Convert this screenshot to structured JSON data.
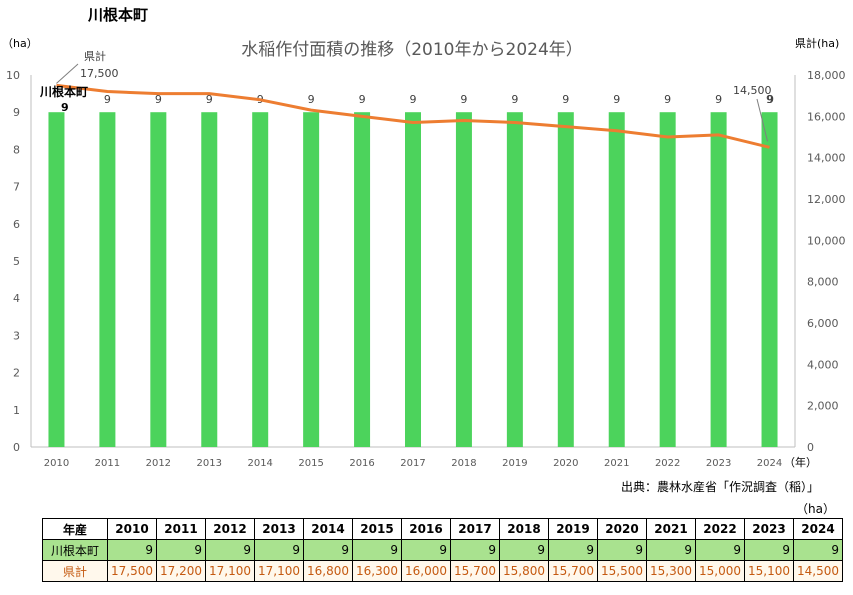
{
  "page_title": "川根本町",
  "source_note": "出典：農林水産省「作況調査（稲）」",
  "table_unit": "（ha）",
  "table": {
    "header_label": "年産",
    "town_label": "川根本町",
    "pref_label": "県計"
  },
  "colors": {
    "bar": "#4cd35c",
    "line": "#ed7d31",
    "pref_text": "#c55a11",
    "town_row_bg": "#a9e28f"
  },
  "chart_data": {
    "type": "bar",
    "title": "水稲作付面積の推移（2010年から2024年）",
    "y_left_unit": "（ha）",
    "y_right_unit": "県計(ha)",
    "x_unit": "（年）",
    "categories": [
      "2010",
      "2011",
      "2012",
      "2013",
      "2014",
      "2015",
      "2016",
      "2017",
      "2018",
      "2019",
      "2020",
      "2021",
      "2022",
      "2023",
      "2024"
    ],
    "y_left_ticks": [
      "0",
      "1",
      "2",
      "3",
      "4",
      "5",
      "6",
      "7",
      "8",
      "9",
      "10"
    ],
    "y_right_ticks": [
      "0",
      "2,000",
      "4,000",
      "6,000",
      "8,000",
      "10,000",
      "12,000",
      "14,000",
      "16,000",
      "18,000"
    ],
    "ylim_left": [
      0,
      10
    ],
    "ylim_right": [
      0,
      18000
    ],
    "series": [
      {
        "name": "川根本町",
        "kind": "bar",
        "axis": "left",
        "values": [
          9,
          9,
          9,
          9,
          9,
          9,
          9,
          9,
          9,
          9,
          9,
          9,
          9,
          9,
          9
        ],
        "labels": [
          "9",
          "9",
          "9",
          "9",
          "9",
          "9",
          "9",
          "9",
          "9",
          "9",
          "9",
          "9",
          "9",
          "9",
          "9"
        ]
      },
      {
        "name": "県計",
        "kind": "line",
        "axis": "right",
        "values": [
          17500,
          17200,
          17100,
          17100,
          16800,
          16300,
          16000,
          15700,
          15800,
          15700,
          15500,
          15300,
          15000,
          15100,
          14500
        ],
        "labels": [
          "17,500",
          "17,200",
          "17,100",
          "17,100",
          "16,800",
          "16,300",
          "16,000",
          "15,700",
          "15,800",
          "15,700",
          "15,500",
          "15,300",
          "15,000",
          "15,100",
          "14,500"
        ]
      }
    ],
    "annotations": {
      "line_start_name": "県計",
      "line_start_value": "17,500",
      "line_end_value": "14,500",
      "bar_start_name": "川根本町",
      "bar_start_value": "9"
    },
    "grid": false
  }
}
